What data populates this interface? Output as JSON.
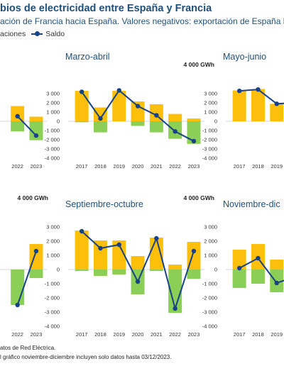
{
  "header": {
    "title": "bios de electricidad entre España y Francia",
    "subtitle": "ación de Francia hacia España. Valores negativos: exportación de España ha",
    "legend_label_1": "aciones",
    "legend_label_2": "Saldo"
  },
  "footnotes": {
    "line1": "atos de Red Eléctrica.",
    "line2": "l gráfico noviembre-diciembre incluyen solo datos hasta 03/12/2023."
  },
  "colors": {
    "import": "#fbbf0c",
    "export": "#8ccf56",
    "saldo": "#17428a"
  },
  "chart_data": [
    {
      "type": "bar",
      "title": "",
      "unit": "",
      "categories": [
        "2017",
        "2018",
        "2019",
        "2020",
        "2021",
        "2022",
        "2023"
      ],
      "visible_categories": [
        "2022",
        "2023"
      ],
      "series": [
        {
          "name": "",
          "values": [
            null,
            null,
            null,
            null,
            null,
            1650,
            500
          ]
        },
        {
          "name": "",
          "values": [
            null,
            null,
            null,
            null,
            null,
            -1100,
            -2050
          ]
        },
        {
          "name": "Saldo",
          "values": [
            null,
            null,
            null,
            null,
            null,
            550,
            -1550
          ]
        }
      ],
      "ylim": [
        -4000,
        4000
      ]
    },
    {
      "type": "bar",
      "title": "Marzo-abril",
      "unit": "4 000 GWh",
      "categories": [
        "2017",
        "2018",
        "2019",
        "2020",
        "2021",
        "2022",
        "2023"
      ],
      "series": [
        {
          "name": "",
          "values": [
            3300,
            1500,
            3300,
            2150,
            1850,
            800,
            300
          ]
        },
        {
          "name": "",
          "values": [
            -100,
            -1200,
            0,
            -500,
            -1200,
            -1900,
            -2450
          ]
        },
        {
          "name": "Saldo",
          "values": [
            3200,
            300,
            3350,
            1650,
            650,
            -1100,
            -2150
          ]
        }
      ],
      "ylim": [
        -4000,
        4000
      ]
    },
    {
      "type": "bar",
      "title": "Mayo-junio",
      "unit": "4 000 GWh",
      "categories": [
        "2017",
        "2018",
        "2019",
        "2020",
        "2021",
        "2022",
        "2023"
      ],
      "visible_categories": [
        "2017",
        "2018",
        "2019"
      ],
      "series": [
        {
          "name": "",
          "values": [
            3350,
            3500,
            1900,
            null,
            null,
            null,
            null
          ]
        },
        {
          "name": "",
          "values": [
            0,
            0,
            0,
            null,
            null,
            null,
            null
          ]
        },
        {
          "name": "Saldo",
          "values": [
            3300,
            3450,
            1900,
            2000,
            null,
            null,
            null
          ]
        }
      ],
      "ylim": [
        -4000,
        4000
      ]
    },
    {
      "type": "bar",
      "title": "",
      "unit": "4 000 GWh",
      "categories": [
        "2017",
        "2018",
        "2019",
        "2020",
        "2021",
        "2022",
        "2023"
      ],
      "visible_categories": [
        "2022",
        "2023"
      ],
      "series": [
        {
          "name": "",
          "values": [
            null,
            null,
            null,
            null,
            null,
            0,
            1800
          ]
        },
        {
          "name": "",
          "values": [
            null,
            null,
            null,
            null,
            null,
            -2500,
            -600
          ]
        },
        {
          "name": "Saldo",
          "values": [
            null,
            null,
            null,
            null,
            null,
            -2500,
            1300
          ]
        }
      ],
      "ylim": [
        -4000,
        4000
      ]
    },
    {
      "type": "bar",
      "title": "Septiembre-octubre",
      "unit": "4 000 GWh",
      "categories": [
        "2017",
        "2018",
        "2019",
        "2020",
        "2021",
        "2022",
        "2023"
      ],
      "series": [
        {
          "name": "",
          "values": [
            2750,
            2050,
            2050,
            950,
            2250,
            350,
            1950
          ]
        },
        {
          "name": "",
          "values": [
            -100,
            -450,
            -350,
            -1750,
            -100,
            -3050,
            -650
          ]
        },
        {
          "name": "Saldo",
          "values": [
            2700,
            1500,
            1750,
            -850,
            2200,
            -2750,
            1300
          ]
        }
      ],
      "ylim": [
        -4000,
        4000
      ]
    },
    {
      "type": "bar",
      "title": "Noviembre-dic",
      "unit": "4 000 GWh",
      "categories": [
        "2017",
        "2018",
        "2019",
        "2020",
        "2021",
        "2022",
        "2023"
      ],
      "visible_categories": [
        "2017",
        "2018",
        "2019"
      ],
      "series": [
        {
          "name": "",
          "values": [
            1400,
            1800,
            700,
            null,
            null,
            null,
            null
          ]
        },
        {
          "name": "",
          "values": [
            -1300,
            -1000,
            -1600,
            null,
            null,
            null,
            null
          ]
        },
        {
          "name": "Saldo",
          "values": [
            100,
            800,
            -950,
            -500,
            null,
            null,
            null
          ]
        }
      ],
      "ylim": [
        -4000,
        4000
      ]
    }
  ]
}
